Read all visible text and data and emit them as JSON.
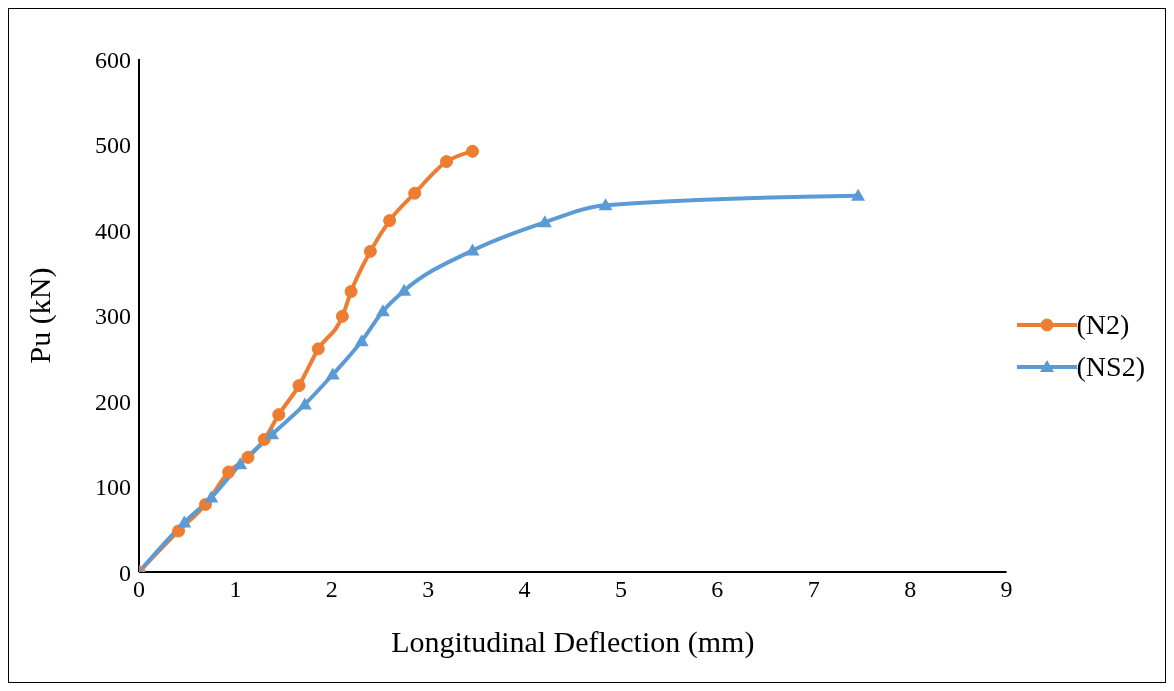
{
  "chart_data": {
    "type": "line",
    "xlabel": "Longitudinal Deflection (mm)",
    "ylabel": "Pu (kN)",
    "xlim": [
      0,
      9
    ],
    "xticks": [
      0,
      1,
      2,
      3,
      4,
      5,
      6,
      7,
      8,
      9
    ],
    "ylim": [
      0,
      600
    ],
    "yticks": [
      0,
      100,
      200,
      300,
      400,
      500,
      600
    ],
    "grid": false,
    "legend": "right",
    "series": [
      {
        "name": "(N2)",
        "color": "#ed7d31",
        "marker": "circle",
        "x": [
          0,
          0.41,
          0.69,
          0.93,
          1.13,
          1.3,
          1.45,
          1.66,
          1.86,
          2.11,
          2.2,
          2.4,
          2.6,
          2.86,
          3.19,
          3.46
        ],
        "values": [
          0,
          48,
          79,
          117,
          134,
          155,
          184,
          218,
          261,
          299,
          328,
          375,
          411,
          443,
          480,
          492
        ]
      },
      {
        "name": "(NS2)",
        "color": "#5b9bd5",
        "marker": "triangle",
        "x": [
          0,
          0.47,
          0.75,
          1.05,
          1.38,
          1.72,
          2.01,
          2.31,
          2.53,
          2.75,
          3.46,
          4.21,
          4.84,
          7.46
        ],
        "values": [
          0,
          58,
          87,
          126,
          161,
          196,
          231,
          270,
          305,
          329,
          376,
          409,
          429,
          440
        ]
      }
    ]
  }
}
